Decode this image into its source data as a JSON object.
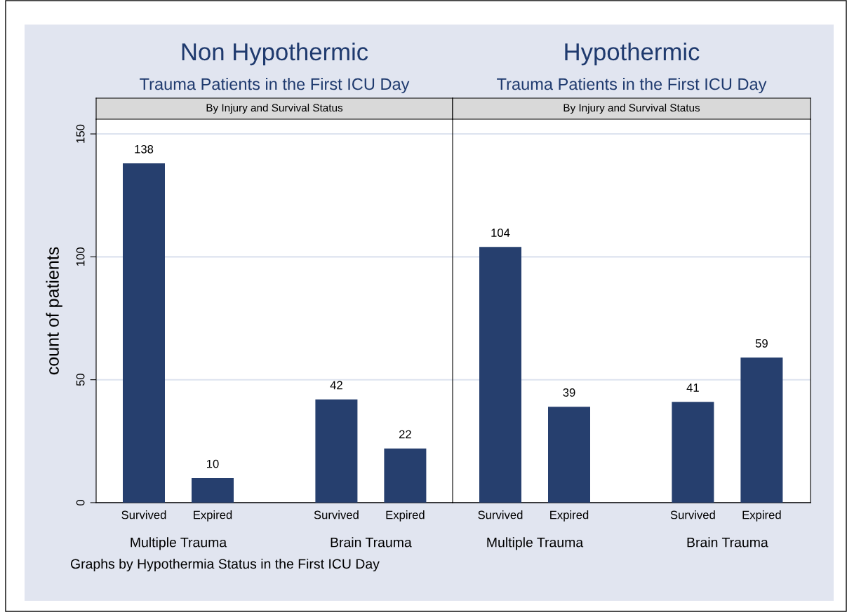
{
  "chart_data": [
    {
      "type": "bar",
      "title": "Non Hypothermic",
      "subtitle": "Trauma Patients in the First ICU Day",
      "ylabel": "count of patients",
      "categories": [
        "Survived",
        "Expired",
        "Survived",
        "Expired"
      ],
      "values": [
        138,
        10,
        42,
        22
      ],
      "color": "#263f6e",
      "data_labels": true,
      "ylim": [
        0,
        156
      ],
      "yticks": [
        0,
        50,
        100,
        150
      ],
      "grid": "y",
      "annotations": [
        "By Injury and Survival Status",
        "Multiple Trauma",
        "Brain Trauma",
        "Graphs by Hypothermia Status in the First ICU Day"
      ]
    },
    {
      "type": "bar",
      "title": "Hypothermic",
      "subtitle": "Trauma Patients in the First ICU Day",
      "categories": [
        "Survived",
        "Expired",
        "Survived",
        "Expired"
      ],
      "values": [
        104,
        39,
        41,
        59
      ],
      "color": "#263f6e",
      "data_labels": true,
      "ylim": [
        0,
        156
      ],
      "yticks": [
        0,
        50,
        100,
        150
      ],
      "grid": "y",
      "tick_labels": "x",
      "annotations": [
        "By Injury and Survival Status",
        "Multiple Trauma",
        "Brain Trauma"
      ]
    }
  ]
}
